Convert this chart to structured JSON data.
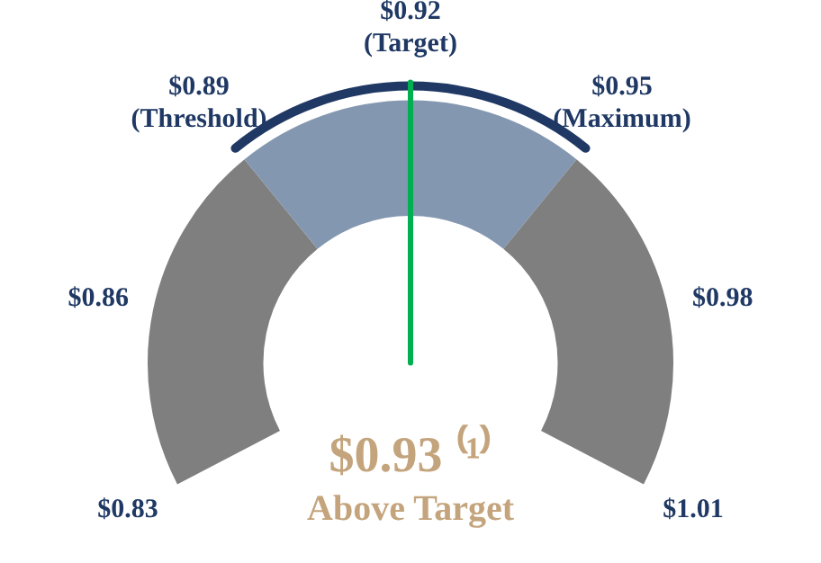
{
  "chart_data": {
    "type": "donut",
    "categories": [
      "$0.86",
      "$0.92\n(Target)",
      "$0.98"
    ],
    "values": [
      33.33,
      33.34,
      33.33
    ],
    "colors": [
      "#7f7f7f",
      "#8497b0",
      "#7f7f7f"
    ],
    "needle": "$0.92\n(Target)",
    "annotations": [
      "$0.83",
      "$0.89\n(Threshold)",
      "$0.95\n(Maximum)",
      "$1.01",
      "$0.93 ⁽¹⁾",
      "Above Target"
    ]
  }
}
